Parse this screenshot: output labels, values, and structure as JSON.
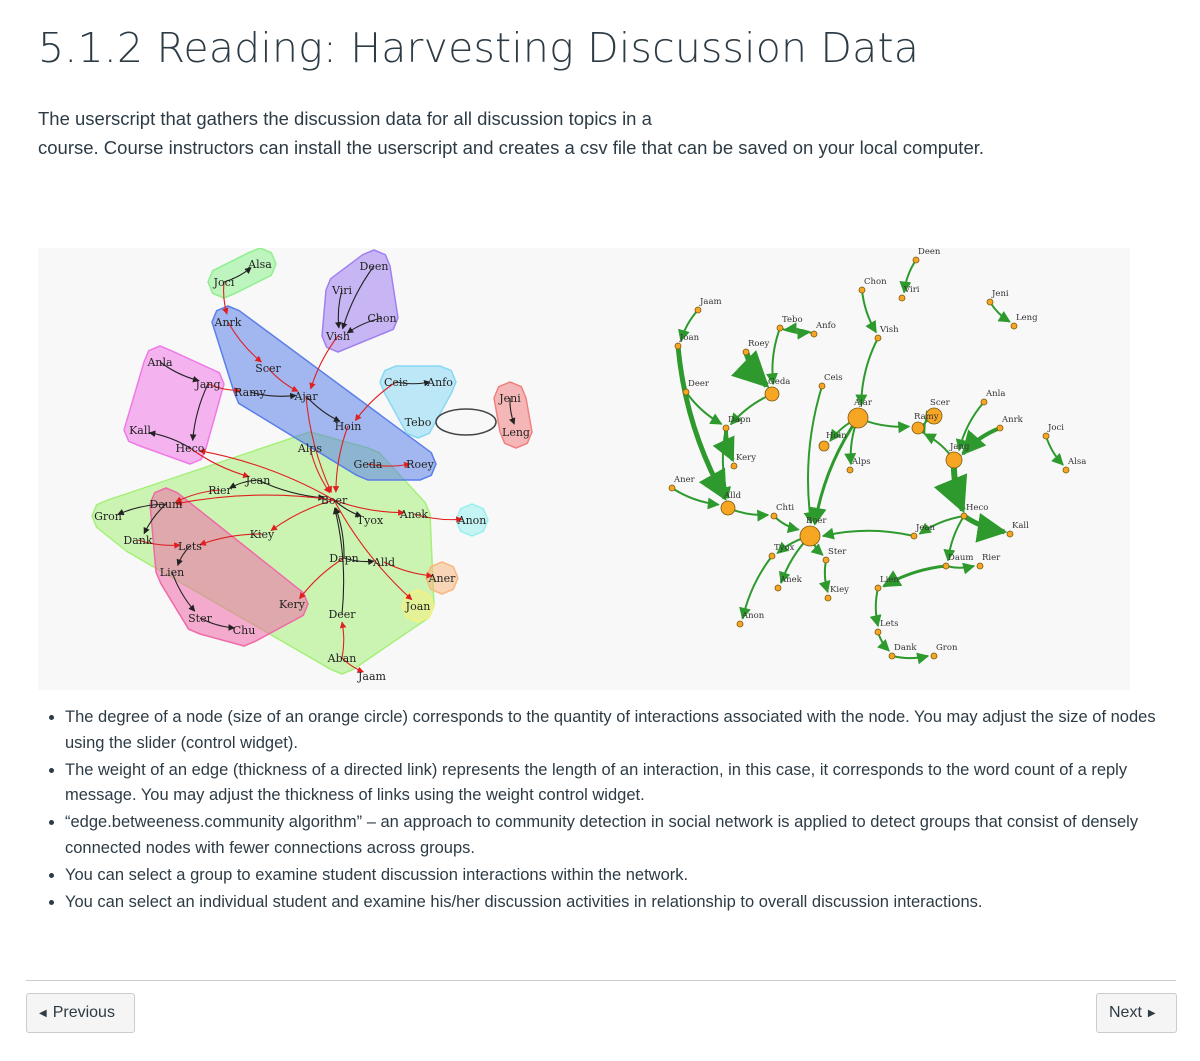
{
  "page": {
    "title": "5.1.2 Reading: Harvesting Discussion Data",
    "intro_line1": "The userscript that gathers the discussion data for all discussion topics in a",
    "intro_line2": "course. Course instructors can install the userscript and creates a csv file that can be saved on your local computer."
  },
  "bullets": [
    "The degree of a node (size of an orange circle) corresponds to the quantity of interactions associated with the node. You may adjust the size of nodes using the slider (control widget).",
    "The weight of an edge (thickness of a directed link) represents the length of an interaction, in this case, it corresponds to the word count of a reply message. You may adjust the thickness of links using the weight control widget.",
    "“edge.betweeness.community algorithm” – an approach to community detection in social network is applied to detect groups that consist of densely connected nodes with fewer connections across groups.",
    "You can select a group to examine student discussion interactions within the network.",
    "You can select an individual student and examine his/her discussion activities in relationship to overall discussion interactions."
  ],
  "nav": {
    "previous": "Previous",
    "next": "Next",
    "prev_icon": "caret-left-icon",
    "next_icon": "caret-right-icon"
  },
  "colors": {
    "text": "#2d3b45",
    "edge_green": "#2e9a2e",
    "node_orange": "#f6a623",
    "cross_edge": "#e02020"
  },
  "left_graph": {
    "nodes": [
      {
        "id": "Alsa",
        "label": "Alsa"
      },
      {
        "id": "Joci",
        "label": "Joci"
      },
      {
        "id": "Deen",
        "label": "Deen"
      },
      {
        "id": "Viri",
        "label": "Viri"
      },
      {
        "id": "Chon",
        "label": "Chon"
      },
      {
        "id": "Vish",
        "label": "Vish"
      },
      {
        "id": "Anrk",
        "label": "Anrk"
      },
      {
        "id": "Anla",
        "label": "Anla"
      },
      {
        "id": "Scer",
        "label": "Scer"
      },
      {
        "id": "Jang",
        "label": "Jang"
      },
      {
        "id": "Ramy",
        "label": "Ramy"
      },
      {
        "id": "Ajar",
        "label": "Ajar"
      },
      {
        "id": "Ceis",
        "label": "Ceis"
      },
      {
        "id": "Anfo",
        "label": "Anfo"
      },
      {
        "id": "Jeni",
        "label": "Jeni"
      },
      {
        "id": "Kall",
        "label": "Kall"
      },
      {
        "id": "Heco",
        "label": "Heco"
      },
      {
        "id": "Hoin",
        "label": "Hoin"
      },
      {
        "id": "Tebo",
        "label": "Tebo"
      },
      {
        "id": "Leng",
        "label": "Leng"
      },
      {
        "id": "Alps",
        "label": "Alps"
      },
      {
        "id": "Geda",
        "label": "Geda"
      },
      {
        "id": "Roey",
        "label": "Roey"
      },
      {
        "id": "Jean",
        "label": "Jean"
      },
      {
        "id": "Rier",
        "label": "Rier"
      },
      {
        "id": "Daum",
        "label": "Daum"
      },
      {
        "id": "Gron",
        "label": "Gron"
      },
      {
        "id": "Boer",
        "label": "Boer"
      },
      {
        "id": "Anek",
        "label": "Anek"
      },
      {
        "id": "Tyox",
        "label": "Tyox"
      },
      {
        "id": "Anon",
        "label": "Anon"
      },
      {
        "id": "Kiey",
        "label": "Kiey"
      },
      {
        "id": "Dank",
        "label": "Dank"
      },
      {
        "id": "Lets",
        "label": "Lets"
      },
      {
        "id": "Dapn",
        "label": "Dapn"
      },
      {
        "id": "Alld",
        "label": "Alld"
      },
      {
        "id": "Lien",
        "label": "Lien"
      },
      {
        "id": "Aner",
        "label": "Aner"
      },
      {
        "id": "Kery",
        "label": "Kery"
      },
      {
        "id": "Joan",
        "label": "Joan"
      },
      {
        "id": "Ster",
        "label": "Ster"
      },
      {
        "id": "Chu",
        "label": "Chu"
      },
      {
        "id": "Deer",
        "label": "Deer"
      },
      {
        "id": "Aban",
        "label": "Aban"
      },
      {
        "id": "Jaam",
        "label": "Jaam"
      }
    ],
    "groups": [
      {
        "id": "g-green",
        "color": "#a6f07a",
        "members": [
          "Gron",
          "Daum",
          "Dank",
          "Kiey",
          "Kery",
          "Aban",
          "Joan",
          "Anek",
          "Geda",
          "Alps"
        ]
      },
      {
        "id": "g-blue",
        "color": "#5b7fe8",
        "members": [
          "Anrk",
          "Ramy",
          "Ajar",
          "Hoin",
          "Geda",
          "Roey"
        ]
      },
      {
        "id": "g-magenta",
        "color": "#f07ae8",
        "members": [
          "Anla",
          "Kall",
          "Heco",
          "Jang"
        ]
      },
      {
        "id": "g-pink",
        "color": "#f06aa8",
        "members": [
          "Daum",
          "Lets",
          "Lien",
          "Ster",
          "Chu",
          "Kery"
        ]
      },
      {
        "id": "g-purple",
        "color": "#a080f0",
        "members": [
          "Deen",
          "Viri",
          "Vish",
          "Chon"
        ]
      },
      {
        "id": "g-lime",
        "color": "#8ef08e",
        "members": [
          "Alsa",
          "Joci"
        ]
      },
      {
        "id": "g-cyan",
        "color": "#88d8f5",
        "members": [
          "Ceis",
          "Anfo",
          "Tebo"
        ]
      },
      {
        "id": "g-red",
        "color": "#f08080",
        "members": [
          "Jeni",
          "Leng"
        ]
      },
      {
        "id": "g-teal",
        "color": "#9af0f0",
        "members": [
          "Anon"
        ]
      },
      {
        "id": "g-orange",
        "color": "#f8b880",
        "members": [
          "Aner"
        ]
      },
      {
        "id": "g-yellow",
        "color": "#f8f080",
        "members": [
          "Joan"
        ]
      }
    ],
    "edges": [
      [
        "Joci",
        "Alsa"
      ],
      [
        "Joci",
        "Anrk"
      ],
      [
        "Anrk",
        "Scer"
      ],
      [
        "Scer",
        "Ajar"
      ],
      [
        "Jang",
        "Ramy"
      ],
      [
        "Ramy",
        "Ajar"
      ],
      [
        "Ajar",
        "Hoin"
      ],
      [
        "Ajar",
        "Boer"
      ],
      [
        "Vish",
        "Ajar"
      ],
      [
        "Chon",
        "Vish"
      ],
      [
        "Viri",
        "Vish"
      ],
      [
        "Deen",
        "Vish"
      ],
      [
        "Anla",
        "Jang"
      ],
      [
        "Jang",
        "Heco"
      ],
      [
        "Heco",
        "Kall"
      ],
      [
        "Heco",
        "Jean"
      ],
      [
        "Jean",
        "Rier"
      ],
      [
        "Jean",
        "Boer"
      ],
      [
        "Boer",
        "Anek"
      ],
      [
        "Anek",
        "Anon"
      ],
      [
        "Boer",
        "Tyox"
      ],
      [
        "Hoin",
        "Boer"
      ],
      [
        "Geda",
        "Roey"
      ],
      [
        "Alps",
        "Boer"
      ],
      [
        "Ceis",
        "Anfo"
      ],
      [
        "Ceis",
        "Hoin"
      ],
      [
        "Tebo",
        "Tebo"
      ],
      [
        "Jeni",
        "Leng"
      ],
      [
        "Daum",
        "Gron"
      ],
      [
        "Daum",
        "Dank"
      ],
      [
        "Dank",
        "Lets"
      ],
      [
        "Lets",
        "Lien"
      ],
      [
        "Lien",
        "Ster"
      ],
      [
        "Ster",
        "Chu"
      ],
      [
        "Kiey",
        "Lets"
      ],
      [
        "Boer",
        "Kiey"
      ],
      [
        "Dapn",
        "Boer"
      ],
      [
        "Dapn",
        "Alld"
      ],
      [
        "Alld",
        "Aner"
      ],
      [
        "Dapn",
        "Kery"
      ],
      [
        "Boer",
        "Joan"
      ],
      [
        "Deer",
        "Boer"
      ],
      [
        "Aban",
        "Deer"
      ],
      [
        "Aban",
        "Jaam"
      ],
      [
        "Rier",
        "Daum"
      ],
      [
        "Boer",
        "Heco"
      ],
      [
        "Boer",
        "Daum"
      ]
    ]
  },
  "right_graph": {
    "nodes": [
      {
        "id": "Deen",
        "label": "Deen"
      },
      {
        "id": "Chon",
        "label": "Chon"
      },
      {
        "id": "Viri",
        "label": "Viri"
      },
      {
        "id": "Jeni",
        "label": "Jeni"
      },
      {
        "id": "Leng",
        "label": "Leng"
      },
      {
        "id": "Jaam",
        "label": "Jaam"
      },
      {
        "id": "Tebo",
        "label": "Tebo"
      },
      {
        "id": "Anfo",
        "label": "Anfo"
      },
      {
        "id": "Vish",
        "label": "Vish"
      },
      {
        "id": "Joan",
        "label": "Joan"
      },
      {
        "id": "Roey",
        "label": "Roey"
      },
      {
        "id": "Geda",
        "label": "Geda"
      },
      {
        "id": "Ceis",
        "label": "Ceis"
      },
      {
        "id": "Deer",
        "label": "Deer"
      },
      {
        "id": "Ajar",
        "label": "Ajar"
      },
      {
        "id": "Scer",
        "label": "Scer"
      },
      {
        "id": "Anla",
        "label": "Anla"
      },
      {
        "id": "Anrk",
        "label": "Anrk"
      },
      {
        "id": "Joci",
        "label": "Joci"
      },
      {
        "id": "Dapn",
        "label": "Dapn"
      },
      {
        "id": "Hoin",
        "label": "Hoin"
      },
      {
        "id": "Ramy",
        "label": "Ramy"
      },
      {
        "id": "Jang",
        "label": "Jang"
      },
      {
        "id": "Kery",
        "label": "Kery"
      },
      {
        "id": "Alps",
        "label": "Alps"
      },
      {
        "id": "Alsa",
        "label": "Alsa"
      },
      {
        "id": "Aner",
        "label": "Aner"
      },
      {
        "id": "Alld",
        "label": "Alld"
      },
      {
        "id": "Heco",
        "label": "Heco"
      },
      {
        "id": "Chti",
        "label": "Chti"
      },
      {
        "id": "Boer",
        "label": "Boer"
      },
      {
        "id": "Kall",
        "label": "Kall"
      },
      {
        "id": "Jean",
        "label": "Jean"
      },
      {
        "id": "Tyox",
        "label": "Tyox"
      },
      {
        "id": "Ster",
        "label": "Ster"
      },
      {
        "id": "Daum",
        "label": "Daum"
      },
      {
        "id": "Rier",
        "label": "Rier"
      },
      {
        "id": "Anek",
        "label": "Anek"
      },
      {
        "id": "Kiey",
        "label": "Kiey"
      },
      {
        "id": "Lien",
        "label": "Lien"
      },
      {
        "id": "Anon",
        "label": "Anon"
      },
      {
        "id": "Lets",
        "label": "Lets"
      },
      {
        "id": "Dank",
        "label": "Dank"
      },
      {
        "id": "Gron",
        "label": "Gron"
      }
    ],
    "edges": [
      [
        "Deen",
        "Viri"
      ],
      [
        "Chon",
        "Vish"
      ],
      [
        "Vish",
        "Ajar"
      ],
      [
        "Jeni",
        "Leng"
      ],
      [
        "Jaam",
        "Joan"
      ],
      [
        "Tebo",
        "Anfo"
      ],
      [
        "Anfo",
        "Tebo"
      ],
      [
        "Tebo",
        "Geda"
      ],
      [
        "Roey",
        "Geda"
      ],
      [
        "Geda",
        "Dapn"
      ],
      [
        "Ceis",
        "Boer"
      ],
      [
        "Deer",
        "Dapn"
      ],
      [
        "Dapn",
        "Kery"
      ],
      [
        "Dapn",
        "Alld"
      ],
      [
        "Ajar",
        "Hoin"
      ],
      [
        "Ajar",
        "Boer"
      ],
      [
        "Ajar",
        "Alps"
      ],
      [
        "Ajar",
        "Ramy"
      ],
      [
        "Ramy",
        "Scer"
      ],
      [
        "Scer",
        "Ramy"
      ],
      [
        "Anla",
        "Jang"
      ],
      [
        "Anrk",
        "Jang"
      ],
      [
        "Joci",
        "Alsa"
      ],
      [
        "Jang",
        "Heco"
      ],
      [
        "Jang",
        "Ramy"
      ],
      [
        "Heco",
        "Kall"
      ],
      [
        "Heco",
        "Jean"
      ],
      [
        "Jean",
        "Boer"
      ],
      [
        "Aner",
        "Alld"
      ],
      [
        "Alld",
        "Chti"
      ],
      [
        "Chti",
        "Boer"
      ],
      [
        "Boer",
        "Tyox"
      ],
      [
        "Boer",
        "Ster"
      ],
      [
        "Boer",
        "Anek"
      ],
      [
        "Tyox",
        "Anon"
      ],
      [
        "Ster",
        "Kiey"
      ],
      [
        "Heco",
        "Daum"
      ],
      [
        "Daum",
        "Rier"
      ],
      [
        "Daum",
        "Lien"
      ],
      [
        "Lien",
        "Lets"
      ],
      [
        "Lets",
        "Dank"
      ],
      [
        "Dank",
        "Gron"
      ],
      [
        "Joan",
        "Alld"
      ]
    ]
  }
}
